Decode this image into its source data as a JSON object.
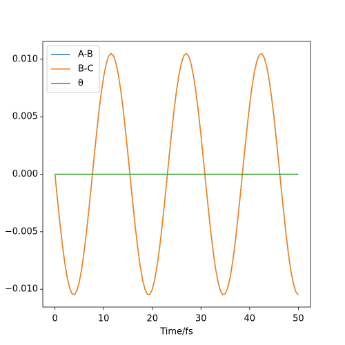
{
  "chart_data": {
    "type": "line",
    "xlabel": "Time/fs",
    "x": [
      0,
      0.5,
      1,
      1.5,
      2,
      2.5,
      3,
      3.5,
      4,
      4.5,
      5,
      5.5,
      6,
      6.5,
      7,
      7.5,
      8,
      8.5,
      9,
      9.5,
      10,
      10.5,
      11,
      11.5,
      12,
      12.5,
      13,
      13.5,
      14,
      14.5,
      15,
      15.5,
      16,
      16.5,
      17,
      17.5,
      18,
      18.5,
      19,
      19.5,
      20,
      20.5,
      21,
      21.5,
      22,
      22.5,
      23,
      23.5,
      24,
      24.5,
      25,
      25.5,
      26,
      26.5,
      27,
      27.5,
      28,
      28.5,
      29,
      29.5,
      30,
      30.5,
      31,
      31.5,
      32,
      32.5,
      33,
      33.5,
      34,
      34.5,
      35,
      35.5,
      36,
      36.5,
      37,
      37.5,
      38,
      38.5,
      39,
      39.5,
      40,
      40.5,
      41,
      41.5,
      42,
      42.5,
      43,
      43.5,
      44,
      44.5,
      45,
      45.5,
      46,
      46.5,
      47,
      47.5,
      48,
      48.5,
      49,
      49.5,
      50
    ],
    "series": [
      {
        "name": "A-B",
        "color": "#1f77b4",
        "values": [
          0,
          -0.00213,
          -0.00417,
          -0.00603,
          -0.00765,
          -0.00895,
          -0.00987,
          -0.01039,
          -0.01048,
          -0.01013,
          -0.00937,
          -0.00821,
          -0.00671,
          -0.00494,
          -0.00296,
          -0.00086,
          0.00128,
          0.00336,
          0.00532,
          0.00703,
          0.00846,
          0.00955,
          0.01024,
          0.0105,
          0.01032,
          0.00972,
          0.00872,
          0.00735,
          0.00568,
          0.00377,
          0.00171,
          -0.00043,
          -0.00255,
          -0.00456,
          -0.00638,
          -0.00794,
          -0.00916,
          -0.01001,
          -0.01045,
          -0.01045,
          -0.01001,
          -0.00916,
          -0.00794,
          -0.00638,
          -0.00456,
          -0.00255,
          -0.00043,
          0.0017,
          0.00377,
          0.00567,
          0.00735,
          0.00871,
          0.00972,
          0.01032,
          0.0105,
          0.01024,
          0.00955,
          0.00847,
          0.00703,
          0.00531,
          0.00337,
          0.00128,
          -0.00086,
          -0.00296,
          -0.00494,
          -0.00671,
          -0.00821,
          -0.00936,
          -0.01013,
          -0.01048,
          -0.01039,
          -0.00988,
          -0.00895,
          -0.00765,
          -0.00603,
          -0.00417,
          -0.00213,
          0,
          0.00213,
          0.00416,
          0.00603,
          0.00765,
          0.00895,
          0.00987,
          0.01039,
          0.01048,
          0.01013,
          0.00937,
          0.00821,
          0.00671,
          0.00494,
          0.00296,
          0.00086,
          -0.00128,
          -0.00337,
          -0.00531,
          -0.00704,
          -0.00847,
          -0.00955,
          -0.01024,
          -0.0105
        ]
      },
      {
        "name": "B-C",
        "color": "#ff7f0e",
        "values": [
          0,
          -0.00213,
          -0.00417,
          -0.00603,
          -0.00765,
          -0.00895,
          -0.00987,
          -0.01039,
          -0.01048,
          -0.01013,
          -0.00937,
          -0.00821,
          -0.00671,
          -0.00494,
          -0.00296,
          -0.00086,
          0.00128,
          0.00336,
          0.00532,
          0.00703,
          0.00846,
          0.00955,
          0.01024,
          0.0105,
          0.01032,
          0.00972,
          0.00872,
          0.00735,
          0.00568,
          0.00377,
          0.00171,
          -0.00043,
          -0.00255,
          -0.00456,
          -0.00638,
          -0.00794,
          -0.00916,
          -0.01001,
          -0.01045,
          -0.01045,
          -0.01001,
          -0.00916,
          -0.00794,
          -0.00638,
          -0.00456,
          -0.00255,
          -0.00043,
          0.0017,
          0.00377,
          0.00567,
          0.00735,
          0.00871,
          0.00972,
          0.01032,
          0.0105,
          0.01024,
          0.00955,
          0.00847,
          0.00703,
          0.00531,
          0.00337,
          0.00128,
          -0.00086,
          -0.00296,
          -0.00494,
          -0.00671,
          -0.00821,
          -0.00936,
          -0.01013,
          -0.01048,
          -0.01039,
          -0.00988,
          -0.00895,
          -0.00765,
          -0.00603,
          -0.00417,
          -0.00213,
          0,
          0.00213,
          0.00416,
          0.00603,
          0.00765,
          0.00895,
          0.00987,
          0.01039,
          0.01048,
          0.01013,
          0.00937,
          0.00821,
          0.00671,
          0.00494,
          0.00296,
          0.00086,
          -0.00128,
          -0.00337,
          -0.00531,
          -0.00704,
          -0.00847,
          -0.00955,
          -0.01024,
          -0.0105
        ]
      },
      {
        "name": "θ",
        "color": "#2ca02c",
        "values": [
          0,
          0,
          0,
          0,
          0,
          0,
          0,
          0,
          0,
          0,
          0,
          0,
          0,
          0,
          0,
          0,
          0,
          0,
          0,
          0,
          0,
          0,
          0,
          0,
          0,
          0,
          0,
          0,
          0,
          0,
          0,
          0,
          0,
          0,
          0,
          0,
          0,
          0,
          0,
          0,
          0,
          0,
          0,
          0,
          0,
          0,
          0,
          0,
          0,
          0,
          0,
          0,
          0,
          0,
          0,
          0,
          0,
          0,
          0,
          0,
          0,
          0,
          0,
          0,
          0,
          0,
          0,
          0,
          0,
          0,
          0,
          0,
          0,
          0,
          0,
          0,
          0,
          0,
          0,
          0,
          0,
          0,
          0,
          0,
          0,
          0,
          0,
          0,
          0,
          0,
          0,
          0,
          0,
          0,
          0,
          0,
          0,
          0,
          0,
          0,
          0
        ]
      }
    ],
    "xlim": [
      -2.5,
      52.5
    ],
    "xticks": [
      0,
      10,
      20,
      30,
      40,
      50
    ],
    "ylim": [
      -0.01155,
      0.01155
    ],
    "yticks": [
      {
        "value": -0.01,
        "label": "−0.010"
      },
      {
        "value": -0.005,
        "label": "−0.005"
      },
      {
        "value": 0,
        "label": "0.000"
      },
      {
        "value": 0.005,
        "label": "0.005"
      },
      {
        "value": 0.01,
        "label": "0.010"
      }
    ],
    "legend": "upper left"
  }
}
